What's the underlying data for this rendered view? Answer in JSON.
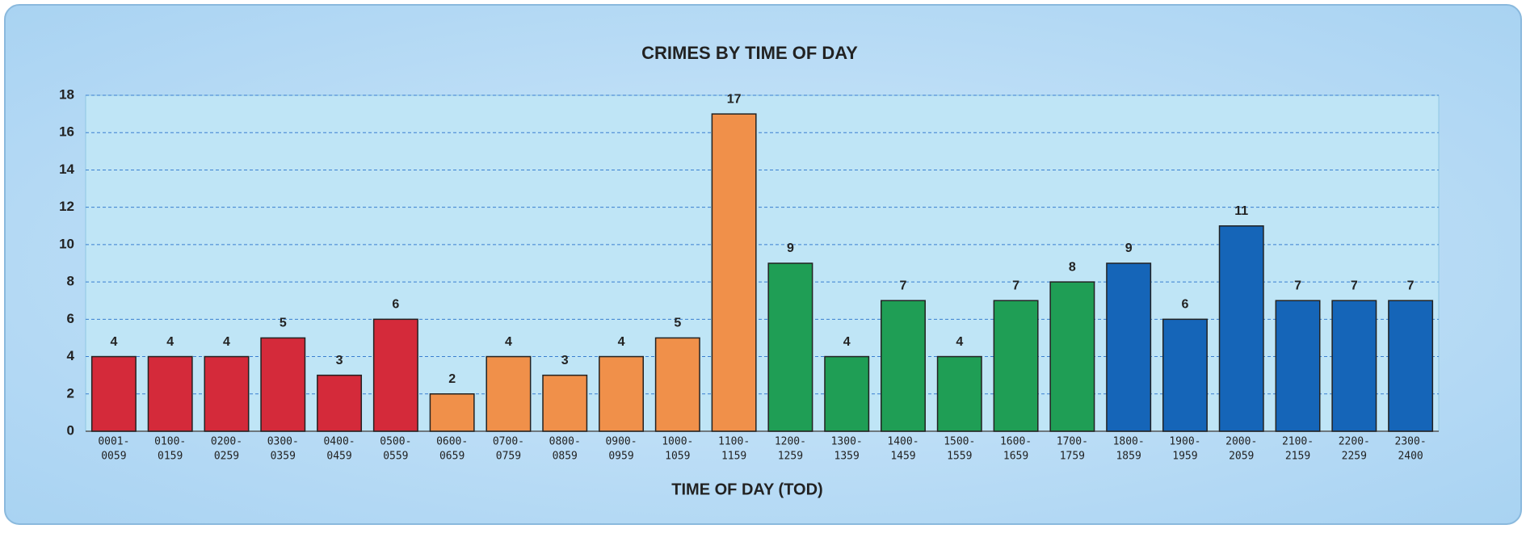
{
  "chart_data": {
    "type": "bar",
    "title": "CRIMES BY TIME OF DAY",
    "x_label": "TIME OF DAY (TOD)",
    "categories": [
      [
        "0001-",
        "0059"
      ],
      [
        "0100-",
        "0159"
      ],
      [
        "0200-",
        "0259"
      ],
      [
        "0300-",
        "0359"
      ],
      [
        "0400-",
        "0459"
      ],
      [
        "0500-",
        "0559"
      ],
      [
        "0600-",
        "0659"
      ],
      [
        "0700-",
        "0759"
      ],
      [
        "0800-",
        "0859"
      ],
      [
        "0900-",
        "0959"
      ],
      [
        "1000-",
        "1059"
      ],
      [
        "1100-",
        "1159"
      ],
      [
        "1200-",
        "1259"
      ],
      [
        "1300-",
        "1359"
      ],
      [
        "1400-",
        "1459"
      ],
      [
        "1500-",
        "1559"
      ],
      [
        "1600-",
        "1659"
      ],
      [
        "1700-",
        "1759"
      ],
      [
        "1800-",
        "1859"
      ],
      [
        "1900-",
        "1959"
      ],
      [
        "2000-",
        "2059"
      ],
      [
        "2100-",
        "2159"
      ],
      [
        "2200-",
        "2259"
      ],
      [
        "2300-",
        "2400"
      ]
    ],
    "values": [
      4,
      4,
      4,
      5,
      3,
      6,
      2,
      4,
      3,
      4,
      5,
      17,
      9,
      4,
      7,
      4,
      7,
      8,
      9,
      6,
      11,
      7,
      7,
      7
    ],
    "colors": [
      "#d42a3a",
      "#d42a3a",
      "#d42a3a",
      "#d42a3a",
      "#d42a3a",
      "#d42a3a",
      "#f0904a",
      "#f0904a",
      "#f0904a",
      "#f0904a",
      "#f0904a",
      "#f0904a",
      "#1f9e55",
      "#1f9e55",
      "#1f9e55",
      "#1f9e55",
      "#1f9e55",
      "#1f9e55",
      "#1565b8",
      "#1565b8",
      "#1565b8",
      "#1565b8",
      "#1565b8",
      "#1565b8"
    ],
    "ylim": [
      0,
      18
    ],
    "yticks": [
      0,
      2,
      4,
      6,
      8,
      10,
      12,
      14,
      16,
      18
    ],
    "grid": true
  }
}
